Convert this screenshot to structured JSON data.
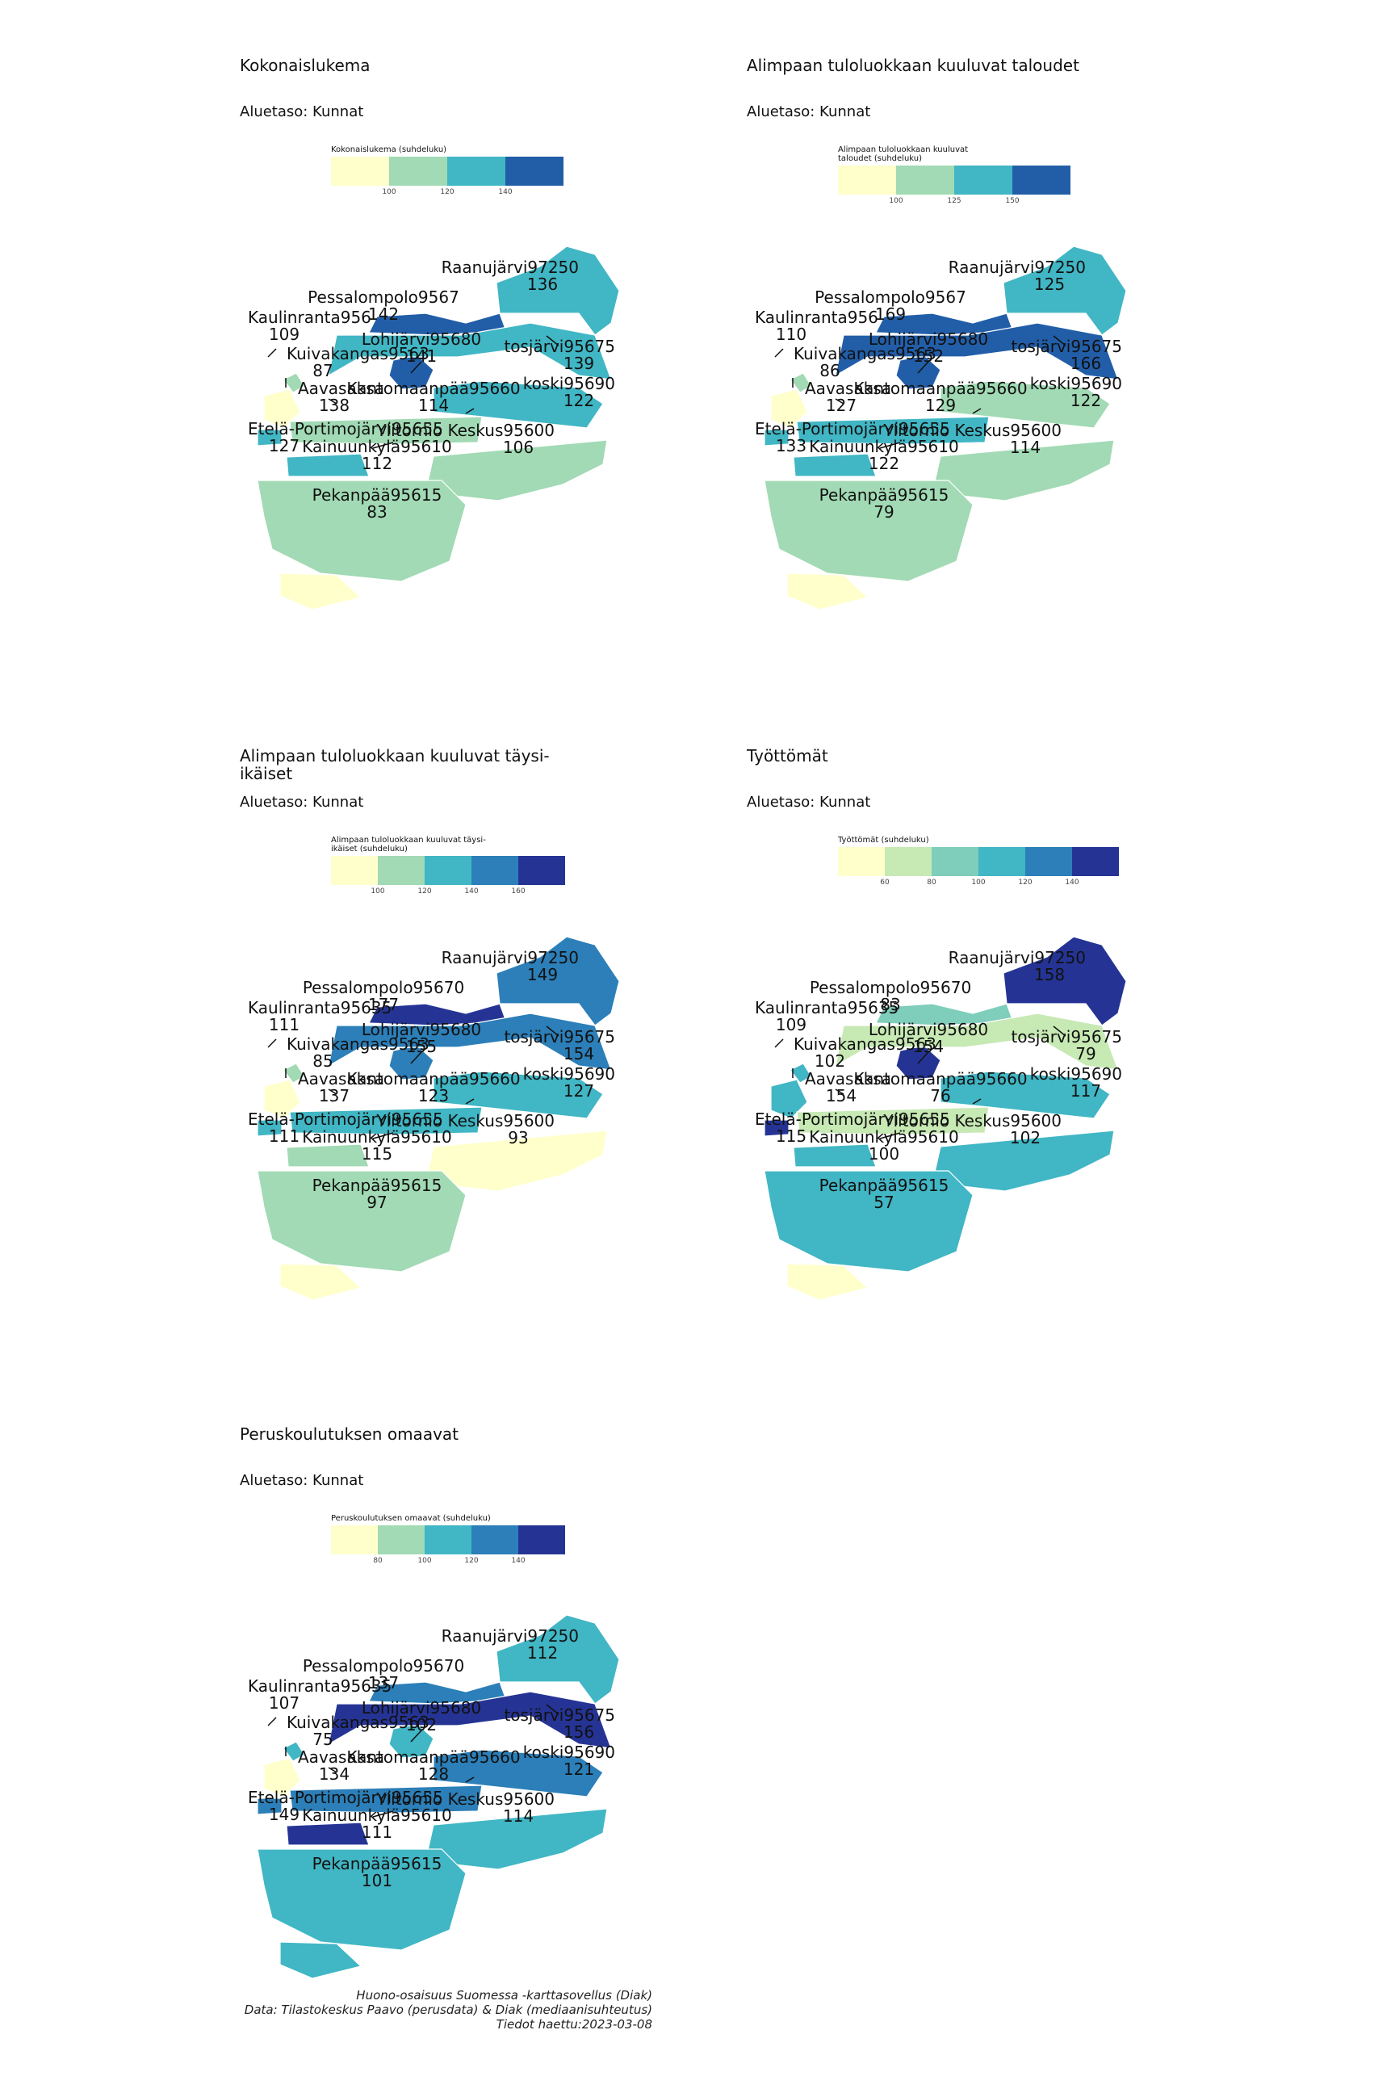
{
  "area_names": [
    "Raanujärvi97250",
    "Pessalompolo95670",
    "Kaulinranta95635",
    "Lohijärvi95680",
    "Kuivakangas95630",
    "Aavasaksa95620",
    "Kantomaanpää95660",
    "Etelä-Portimojärvi95655",
    "Ylitornio Keskus95600",
    "Kainuunkylä95610",
    "Pekanpää95615",
    "Meltosjärvi95675",
    "Mellakoski95690"
  ],
  "colors": {
    "c1": "#ffffcc",
    "c2": "#a1dab4",
    "c3": "#41b6c4",
    "c4": "#2c7fb8",
    "c5": "#253494",
    "c2b": "#c7e9b4",
    "c2c": "#7fcdbb",
    "c4b": "#225ea8"
  },
  "panels": [
    {
      "title": "Kokonaislukema",
      "subtitle": "Aluetaso: Kunnat",
      "legend_title": "Kokonaislukema (suhdeluku)",
      "legend_colors": [
        "#ffffcc",
        "#a1dab4",
        "#41b6c4",
        "#225ea8"
      ],
      "legend_ticks": [
        "100",
        "120",
        "140"
      ],
      "values": [
        136,
        142,
        109,
        141,
        87,
        138,
        114,
        127,
        106,
        112,
        83,
        139,
        122
      ],
      "shown_labels": [
        "Raanujärvi97250",
        "Pessalompolo9567",
        "Kaulinranta956",
        "Lohijärvi95680",
        "Kuivakangas9563",
        "Aavasaksa",
        "Kantomaanpää95660",
        "Etelä-Portimojärvi95655",
        "Ylitornio Keskus95600",
        "Kainuunkylä95610",
        "Pekanpää95615",
        "tosjärvi95675",
        "koski95690"
      ]
    },
    {
      "title": "Alimpaan tuloluokkaan kuuluvat taloudet",
      "subtitle": "Aluetaso: Kunnat",
      "legend_title": "Alimpaan tuloluokkaan kuuluvat taloudet (suhdeluku)",
      "legend_colors": [
        "#ffffcc",
        "#a1dab4",
        "#41b6c4",
        "#225ea8"
      ],
      "legend_ticks": [
        "100",
        "125",
        "150"
      ],
      "values": [
        125,
        169,
        110,
        152,
        86,
        127,
        129,
        133,
        114,
        122,
        79,
        166,
        122
      ],
      "shown_labels": [
        "Raanujärvi97250",
        "Pessalompolo9567",
        "Kaulinranta956",
        "Lohijärvi95680",
        "Kuivakangas9563",
        "Aavasaksa",
        "Kantomaanpää95660",
        "Etelä-Portimojärvi95655",
        "Ylitornio Keskus95600",
        "Kainuunkylä95610",
        "Pekanpää95615",
        "tosjärvi95675",
        "koski95690"
      ]
    },
    {
      "title": "Alimpaan tuloluokkaan kuuluvat täysi-ikäiset",
      "subtitle": "Aluetaso: Kunnat",
      "legend_title": "Alimpaan tuloluokkaan kuuluvat täysi-ikäiset (suhdeluku)",
      "legend_colors": [
        "#ffffcc",
        "#a1dab4",
        "#41b6c4",
        "#2c7fb8",
        "#253494"
      ],
      "legend_ticks": [
        "100",
        "120",
        "140",
        "160"
      ],
      "values": [
        149,
        177,
        111,
        155,
        85,
        137,
        123,
        111,
        93,
        115,
        97,
        154,
        127
      ],
      "shown_labels": [
        "Raanujärvi97250",
        "Pessalompolo95670",
        "Kaulinranta95635",
        "Lohijärvi95680",
        "Kuivakangas9563",
        "Aavasaksa",
        "Kantomaanpää95660",
        "Etelä-Portimojärvi95655",
        "Ylitornio Keskus95600",
        "Kainuunkylä95610",
        "Pekanpää95615",
        "tosjärvi95675",
        "koski95690"
      ]
    },
    {
      "title": "Työttömät",
      "subtitle": "Aluetaso: Kunnat",
      "legend_title": "Työttömät (suhdeluku)",
      "legend_colors": [
        "#ffffcc",
        "#c7e9b4",
        "#7fcdbb",
        "#41b6c4",
        "#2c7fb8",
        "#253494"
      ],
      "legend_ticks": [
        "60",
        "80",
        "100",
        "120",
        "140"
      ],
      "values": [
        158,
        83,
        109,
        154,
        102,
        154,
        76,
        115,
        102,
        100,
        57,
        79,
        117
      ],
      "shown_labels": [
        "Raanujärvi97250",
        "Pessalompolo95670",
        "Kaulinranta95635",
        "Lohijärvi95680",
        "Kuivakangas9563",
        "Aavasaksa",
        "Kantomaanpää95660",
        "Etelä-Portimojärvi95655",
        "Ylitornio Keskus95600",
        "Kainuunkylä95610",
        "Pekanpää95615",
        "tosjärvi95675",
        "koski95690"
      ]
    },
    {
      "title": "Peruskoulutuksen omaavat",
      "subtitle": "Aluetaso: Kunnat",
      "legend_title": "Peruskoulutuksen omaavat (suhdeluku)",
      "legend_colors": [
        "#ffffcc",
        "#a1dab4",
        "#41b6c4",
        "#2c7fb8",
        "#253494"
      ],
      "legend_ticks": [
        "80",
        "100",
        "120",
        "140"
      ],
      "values": [
        112,
        137,
        107,
        102,
        75,
        134,
        128,
        149,
        114,
        111,
        101,
        156,
        121
      ],
      "shown_labels": [
        "Raanujärvi97250",
        "Pessalompolo95670",
        "Kaulinranta95635",
        "Lohijärvi95680",
        "Kuivakangas9563",
        "Aavasaksa",
        "Kantomaanpää95660",
        "Etelä-Portimojärvi95655",
        "Ylitornio Keskus95600",
        "Kainuunkylä95610",
        "Pekanpää95615",
        "tosjärvi95675",
        "koski95690"
      ]
    }
  ],
  "credits": {
    "line1": "Huono-osaisuus Suomessa -karttasovellus (Diak)",
    "line2": "Data: Tilastokeskus Paavo (perusdata) & Diak (mediaanisuhteutus)",
    "line3": "Tiedot haettu:2023-03-08"
  }
}
